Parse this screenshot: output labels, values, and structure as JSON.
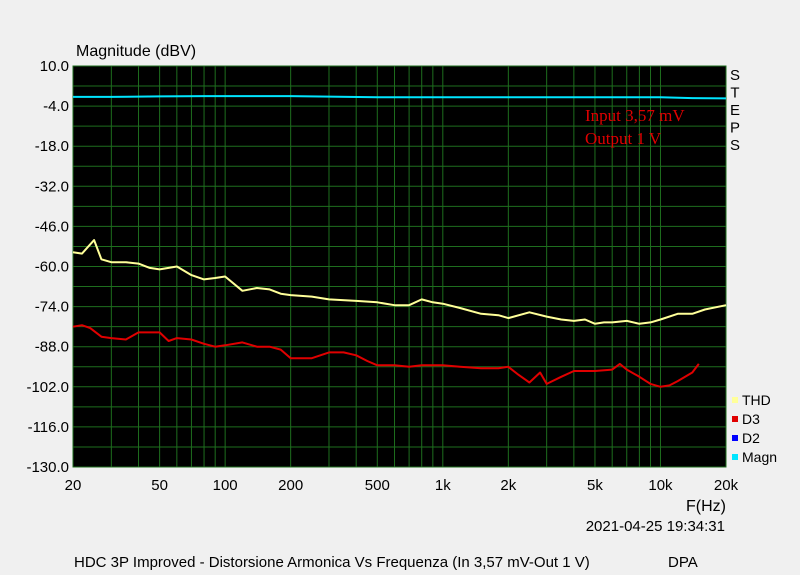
{
  "chart_data": {
    "type": "line",
    "ylabel": "Magnitude (dBV)",
    "xlabel": "F(Hz)",
    "x_scale": "log",
    "xlim": [
      20,
      20000
    ],
    "ylim": [
      -130,
      10
    ],
    "y_ticks": [
      "10.0",
      "-4.0",
      "-18.0",
      "-32.0",
      "-46.0",
      "-60.0",
      "-74.0",
      "-88.0",
      "-102.0",
      "-116.0",
      "-130.0"
    ],
    "x_ticks": [
      {
        "value": 20,
        "label": "20"
      },
      {
        "value": 50,
        "label": "50"
      },
      {
        "value": 100,
        "label": "100"
      },
      {
        "value": 200,
        "label": "200"
      },
      {
        "value": 500,
        "label": "500"
      },
      {
        "value": 1000,
        "label": "1k"
      },
      {
        "value": 2000,
        "label": "2k"
      },
      {
        "value": 5000,
        "label": "5k"
      },
      {
        "value": 10000,
        "label": "10k"
      },
      {
        "value": 20000,
        "label": "20k"
      }
    ],
    "grid": true,
    "background": "#000000",
    "grid_color": "#1e6e1e",
    "annotations": [
      "Input 3,57 mV",
      "Output 1 V"
    ],
    "annotation_color": "#e00000",
    "steps_label": "STEPS",
    "legend_position": "bottom-right",
    "series": [
      {
        "name": "THD",
        "color": "#ffff99",
        "x": [
          20,
          22,
          25,
          27,
          30,
          35,
          40,
          45,
          50,
          55,
          60,
          70,
          80,
          90,
          100,
          120,
          140,
          160,
          180,
          200,
          250,
          300,
          400,
          500,
          600,
          700,
          800,
          900,
          1000,
          1200,
          1500,
          1800,
          2000,
          2500,
          3000,
          3500,
          4000,
          4500,
          5000,
          5500,
          6000,
          7000,
          8000,
          9000,
          10000,
          12000,
          14000,
          16000,
          20000
        ],
        "y": [
          -55,
          -55.5,
          -50.8,
          -57.5,
          -58.5,
          -58.5,
          -59,
          -60.5,
          -61,
          -60.5,
          -60,
          -63,
          -64.5,
          -64,
          -63.5,
          -68.5,
          -67.5,
          -68,
          -69.5,
          -70,
          -70.5,
          -71.5,
          -72,
          -72.5,
          -73.5,
          -73.5,
          -71.5,
          -72.5,
          -73,
          -74.5,
          -76.5,
          -77,
          -78,
          -76,
          -77.5,
          -78.5,
          -79,
          -78.5,
          -80,
          -79.5,
          -79.5,
          -79,
          -80,
          -79.5,
          -78.5,
          -76.5,
          -76.5,
          -75,
          -73.5
        ]
      },
      {
        "name": "D3",
        "color": "#e00000",
        "x": [
          20,
          22,
          24,
          27,
          30,
          35,
          40,
          45,
          50,
          55,
          60,
          70,
          80,
          90,
          100,
          120,
          140,
          160,
          180,
          200,
          250,
          300,
          350,
          400,
          450,
          500,
          600,
          700,
          800,
          1000,
          1200,
          1500,
          1800,
          2000,
          2200,
          2500,
          2800,
          3000,
          3500,
          4000,
          5000,
          6000,
          6500,
          7000,
          8000,
          9000,
          10000,
          11000,
          12000,
          14000,
          15000
        ],
        "y": [
          -81,
          -80.5,
          -81.5,
          -84.5,
          -85,
          -85.5,
          -83,
          -83,
          -83,
          -86,
          -85,
          -85.5,
          -87,
          -88,
          -87.5,
          -86.5,
          -88,
          -88,
          -89,
          -92,
          -92,
          -90,
          -90,
          -91,
          -93,
          -94.5,
          -94.5,
          -95,
          -94.5,
          -94.5,
          -95,
          -95.5,
          -95.5,
          -95,
          -97.5,
          -100.5,
          -97,
          -101,
          -98.5,
          -96.5,
          -96.5,
          -96,
          -94,
          -96,
          -98.5,
          -101,
          -102,
          -101.5,
          -100,
          -97,
          -94
        ]
      },
      {
        "name": "D2",
        "color": "#0000ff",
        "x": [],
        "y": []
      },
      {
        "name": "Magn",
        "color": "#00e5ff",
        "x": [
          20,
          30,
          50,
          80,
          100,
          200,
          500,
          1000,
          2000,
          5000,
          10000,
          14000,
          20000
        ],
        "y": [
          -0.8,
          -0.8,
          -0.6,
          -0.5,
          -0.5,
          -0.5,
          -0.9,
          -0.9,
          -0.9,
          -0.9,
          -0.9,
          -1.2,
          -1.3
        ]
      }
    ]
  },
  "timestamp": "2021-04-25 19:34:31",
  "footer": {
    "title": "HDC 3P Improved - Distorsione Armonica Vs Frequenza (In 3,57 mV-Out 1 V)",
    "brand": "DPA"
  }
}
